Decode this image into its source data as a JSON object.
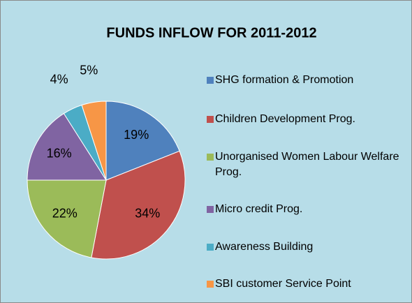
{
  "chart_data": {
    "type": "pie",
    "title": "FUNDS INFLOW FOR 2011-2012",
    "categories": [
      "SHG formation & Promotion",
      "Children Development Prog.",
      "Unorganised Women Labour Welfare Prog.",
      "Micro credit Prog.",
      "Awareness Building",
      "SBI customer Service Point"
    ],
    "values": [
      19,
      34,
      22,
      16,
      4,
      5
    ],
    "value_labels": [
      "19%",
      "34%",
      "22%",
      "16%",
      "4%",
      "5%"
    ],
    "colors": [
      "#4f81bd",
      "#c0504d",
      "#9bbb59",
      "#8064a2",
      "#4bacc6",
      "#f79646"
    ],
    "legend": "right"
  }
}
